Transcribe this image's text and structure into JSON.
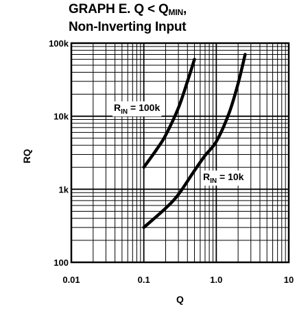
{
  "chart_data": {
    "type": "line",
    "title_line1_prefix": "GRAPH E. Q < Q",
    "title_line1_sub": "MIN",
    "title_line1_suffix": ",",
    "title_line2": "Non-Inverting Input",
    "xlabel": "Q",
    "ylabel": "RQ",
    "x_scale": "log",
    "y_scale": "log",
    "xlim": [
      0.01,
      10
    ],
    "ylim": [
      100,
      100000
    ],
    "grid": true,
    "x_ticks": [
      {
        "value": 0.01,
        "label": "0.01"
      },
      {
        "value": 0.1,
        "label": "0.1"
      },
      {
        "value": 1,
        "label": "1.0"
      },
      {
        "value": 10,
        "label": "10"
      }
    ],
    "y_ticks": [
      {
        "value": 100,
        "label": "100"
      },
      {
        "value": 1000,
        "label": "1k"
      },
      {
        "value": 10000,
        "label": "10k"
      },
      {
        "value": 100000,
        "label": "100k"
      }
    ],
    "series": [
      {
        "label_main": "R",
        "label_sub": "IN",
        "label_rest": " = 100k",
        "x": [
          0.1,
          0.15,
          0.2,
          0.3,
          0.4,
          0.5
        ],
        "y": [
          2000,
          3500,
          5500,
          13000,
          30000,
          60000
        ]
      },
      {
        "label_main": "R",
        "label_sub": "IN",
        "label_rest": " = 10k",
        "x": [
          0.1,
          0.2,
          0.3,
          0.5,
          0.7,
          1.0,
          1.5,
          2.0,
          2.5
        ],
        "y": [
          300,
          550,
          850,
          1800,
          2900,
          4500,
          11000,
          28000,
          70000
        ]
      }
    ]
  }
}
